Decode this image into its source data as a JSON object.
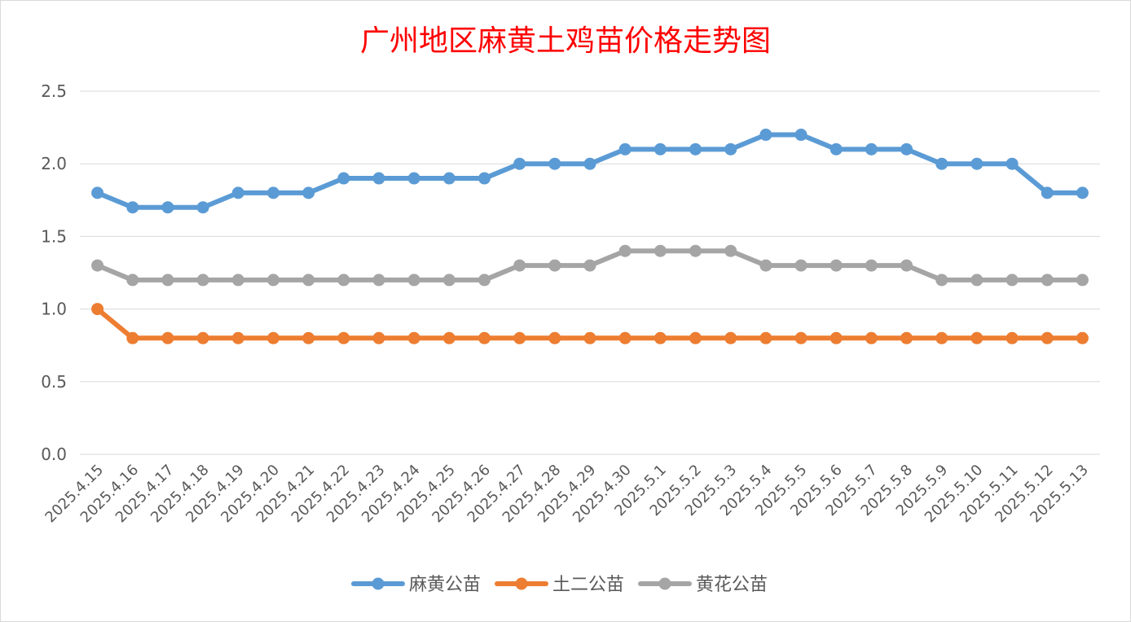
{
  "chart_data": {
    "type": "line",
    "title": "广州地区麻黄土鸡苗价格走势图",
    "title_color": "#ff0000",
    "xlabel": "",
    "ylabel": "",
    "ylim": [
      0,
      2.5
    ],
    "yticks": [
      "0.0",
      "0.5",
      "1.0",
      "1.5",
      "2.0",
      "2.5"
    ],
    "grid": true,
    "legend_position": "bottom",
    "categories": [
      "2025.4.15",
      "2025.4.16",
      "2025.4.17",
      "2025.4.18",
      "2025.4.19",
      "2025.4.20",
      "2025.4.21",
      "2025.4.22",
      "2025.4.23",
      "2025.4.24",
      "2025.4.25",
      "2025.4.26",
      "2025.4.27",
      "2025.4.28",
      "2025.4.29",
      "2025.4.30",
      "2025.5.1",
      "2025.5.2",
      "2025.5.3",
      "2025.5.4",
      "2025.5.5",
      "2025.5.6",
      "2025.5.7",
      "2025.5.8",
      "2025.5.9",
      "2025.5.10",
      "2025.5.11",
      "2025.5.12",
      "2025.5.13"
    ],
    "series": [
      {
        "name": "麻黄公苗",
        "color": "#5b9bd5",
        "values": [
          1.8,
          1.7,
          1.7,
          1.7,
          1.8,
          1.8,
          1.8,
          1.9,
          1.9,
          1.9,
          1.9,
          1.9,
          2.0,
          2.0,
          2.0,
          2.1,
          2.1,
          2.1,
          2.1,
          2.2,
          2.2,
          2.1,
          2.1,
          2.1,
          2.0,
          2.0,
          2.0,
          1.8,
          1.8
        ]
      },
      {
        "name": "土二公苗",
        "color": "#ed7d31",
        "values": [
          1.0,
          0.8,
          0.8,
          0.8,
          0.8,
          0.8,
          0.8,
          0.8,
          0.8,
          0.8,
          0.8,
          0.8,
          0.8,
          0.8,
          0.8,
          0.8,
          0.8,
          0.8,
          0.8,
          0.8,
          0.8,
          0.8,
          0.8,
          0.8,
          0.8,
          0.8,
          0.8,
          0.8,
          0.8
        ]
      },
      {
        "name": "黄花公苗",
        "color": "#a5a5a5",
        "values": [
          1.3,
          1.2,
          1.2,
          1.2,
          1.2,
          1.2,
          1.2,
          1.2,
          1.2,
          1.2,
          1.2,
          1.2,
          1.3,
          1.3,
          1.3,
          1.4,
          1.4,
          1.4,
          1.4,
          1.3,
          1.3,
          1.3,
          1.3,
          1.3,
          1.2,
          1.2,
          1.2,
          1.2,
          1.2
        ]
      }
    ]
  }
}
